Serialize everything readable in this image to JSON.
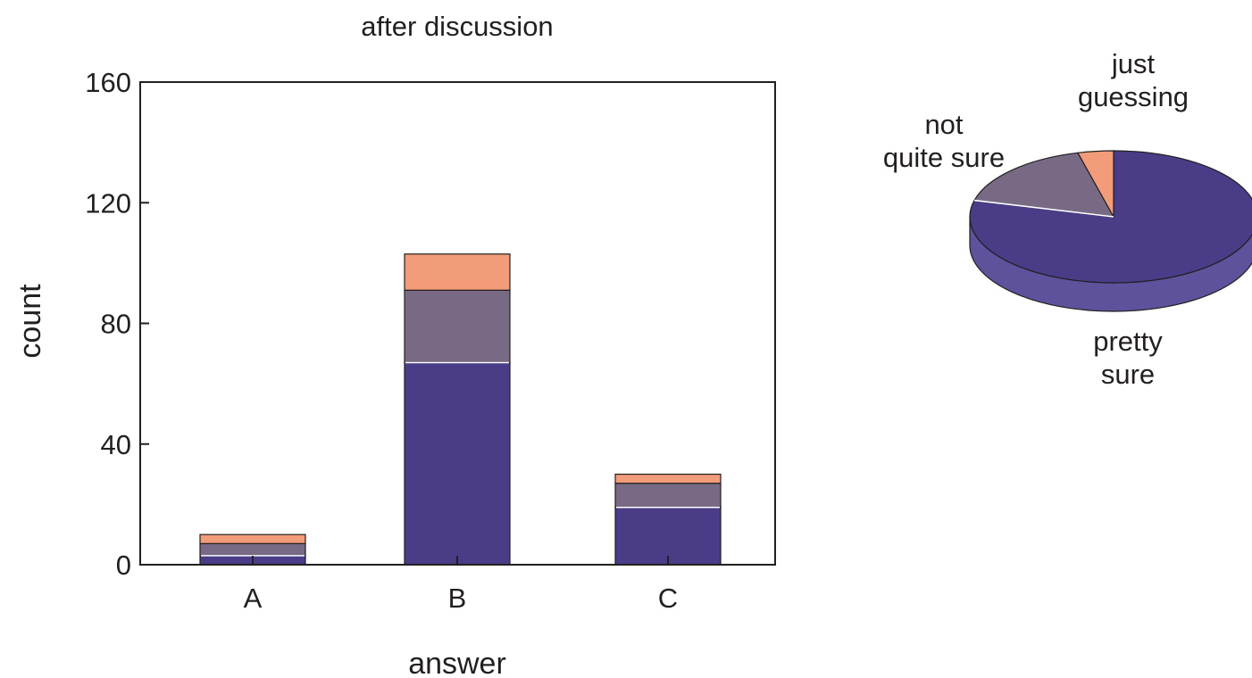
{
  "chart_data": [
    {
      "type": "bar",
      "stacked": true,
      "title": "after discussion",
      "xlabel": "answer",
      "ylabel": "count",
      "categories": [
        "A",
        "B",
        "C"
      ],
      "ylim": [
        0,
        160
      ],
      "yticks": [
        0,
        40,
        80,
        120,
        160
      ],
      "grid": false,
      "series": [
        {
          "values": [
            3,
            67,
            19
          ]
        },
        {
          "values": [
            4,
            24,
            8
          ]
        },
        {
          "values": [
            3,
            12,
            3
          ]
        }
      ]
    },
    {
      "type": "pie",
      "style": "3d",
      "slices": [
        {
          "label": "pretty sure",
          "value": 79,
          "label_lines": [
            "pretty",
            "sure"
          ]
        },
        {
          "label": "not quite sure",
          "value": 17,
          "label_lines": [
            "not",
            "quite sure"
          ]
        },
        {
          "label": "just guessing",
          "value": 4,
          "label_lines": [
            "just",
            "guessing"
          ]
        }
      ]
    }
  ],
  "colors": {
    "pretty_sure": "#4a3c87",
    "pretty_sure_side": "#5e529c",
    "not_quite_sure": "#786a85",
    "just_guessing": "#f39c7a",
    "axis": "#231f20"
  }
}
